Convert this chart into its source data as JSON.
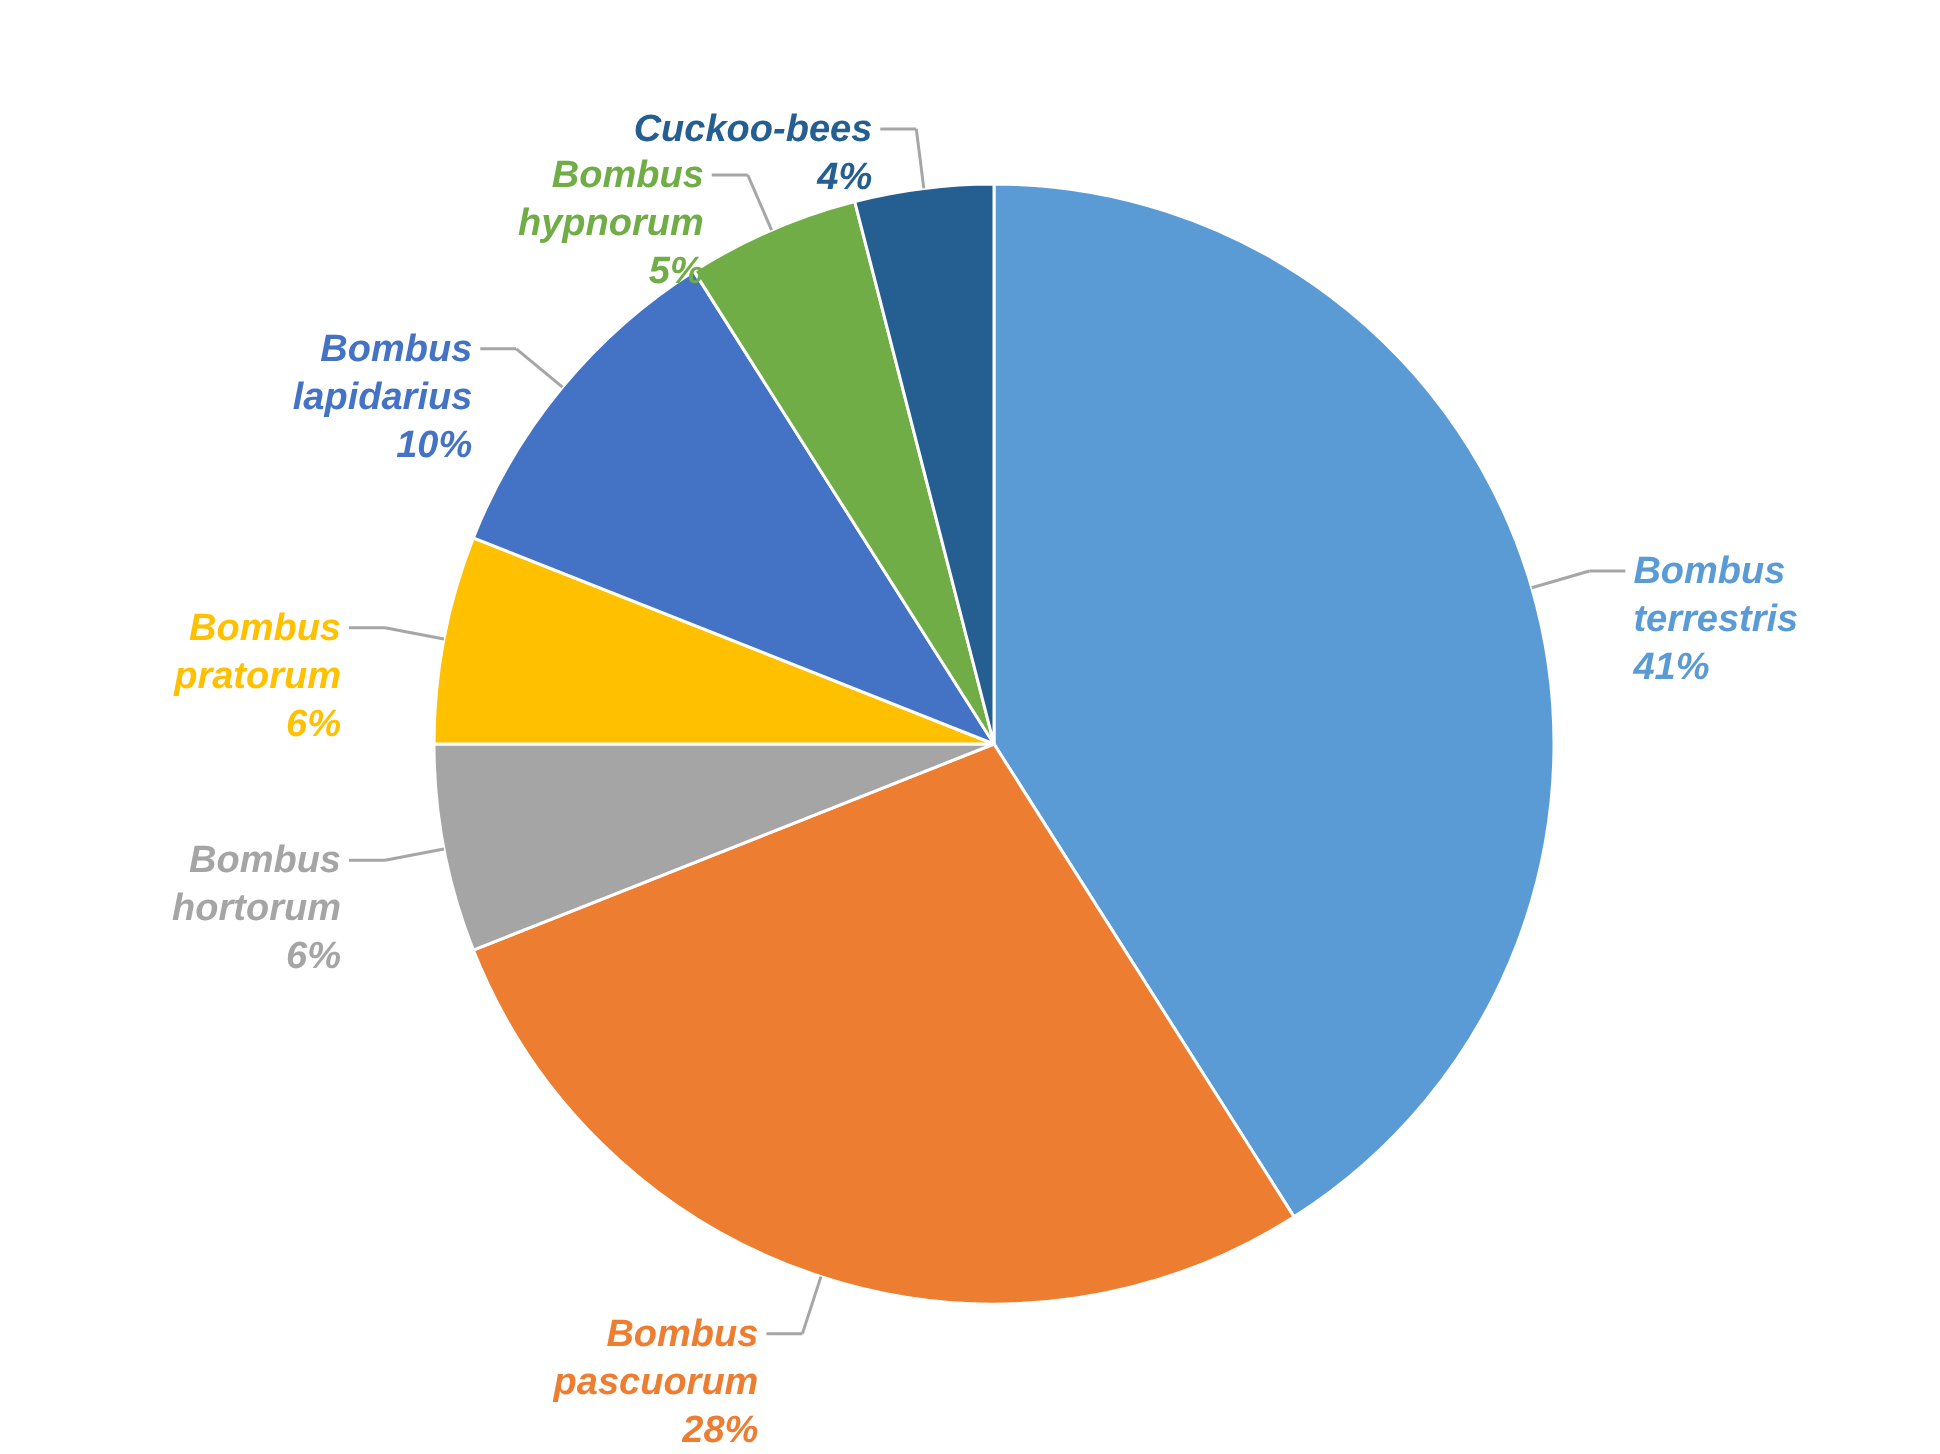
{
  "chart_data": {
    "type": "pie",
    "categories": [
      "Bombus terrestris",
      "Bombus pascuorum",
      "Bombus hortorum",
      "Bombus pratorum",
      "Bombus lapidarius",
      "Bombus hypnorum",
      "Cuckoo-bees"
    ],
    "values": [
      41,
      28,
      6,
      6,
      10,
      5,
      4
    ],
    "value_labels": [
      "41%",
      "28%",
      "6%",
      "6%",
      "10%",
      "5%",
      "4%"
    ],
    "colors": [
      "#5b9bd5",
      "#ed7d31",
      "#a5a5a5",
      "#ffc000",
      "#4472c4",
      "#70ad47",
      "#255e91"
    ]
  }
}
